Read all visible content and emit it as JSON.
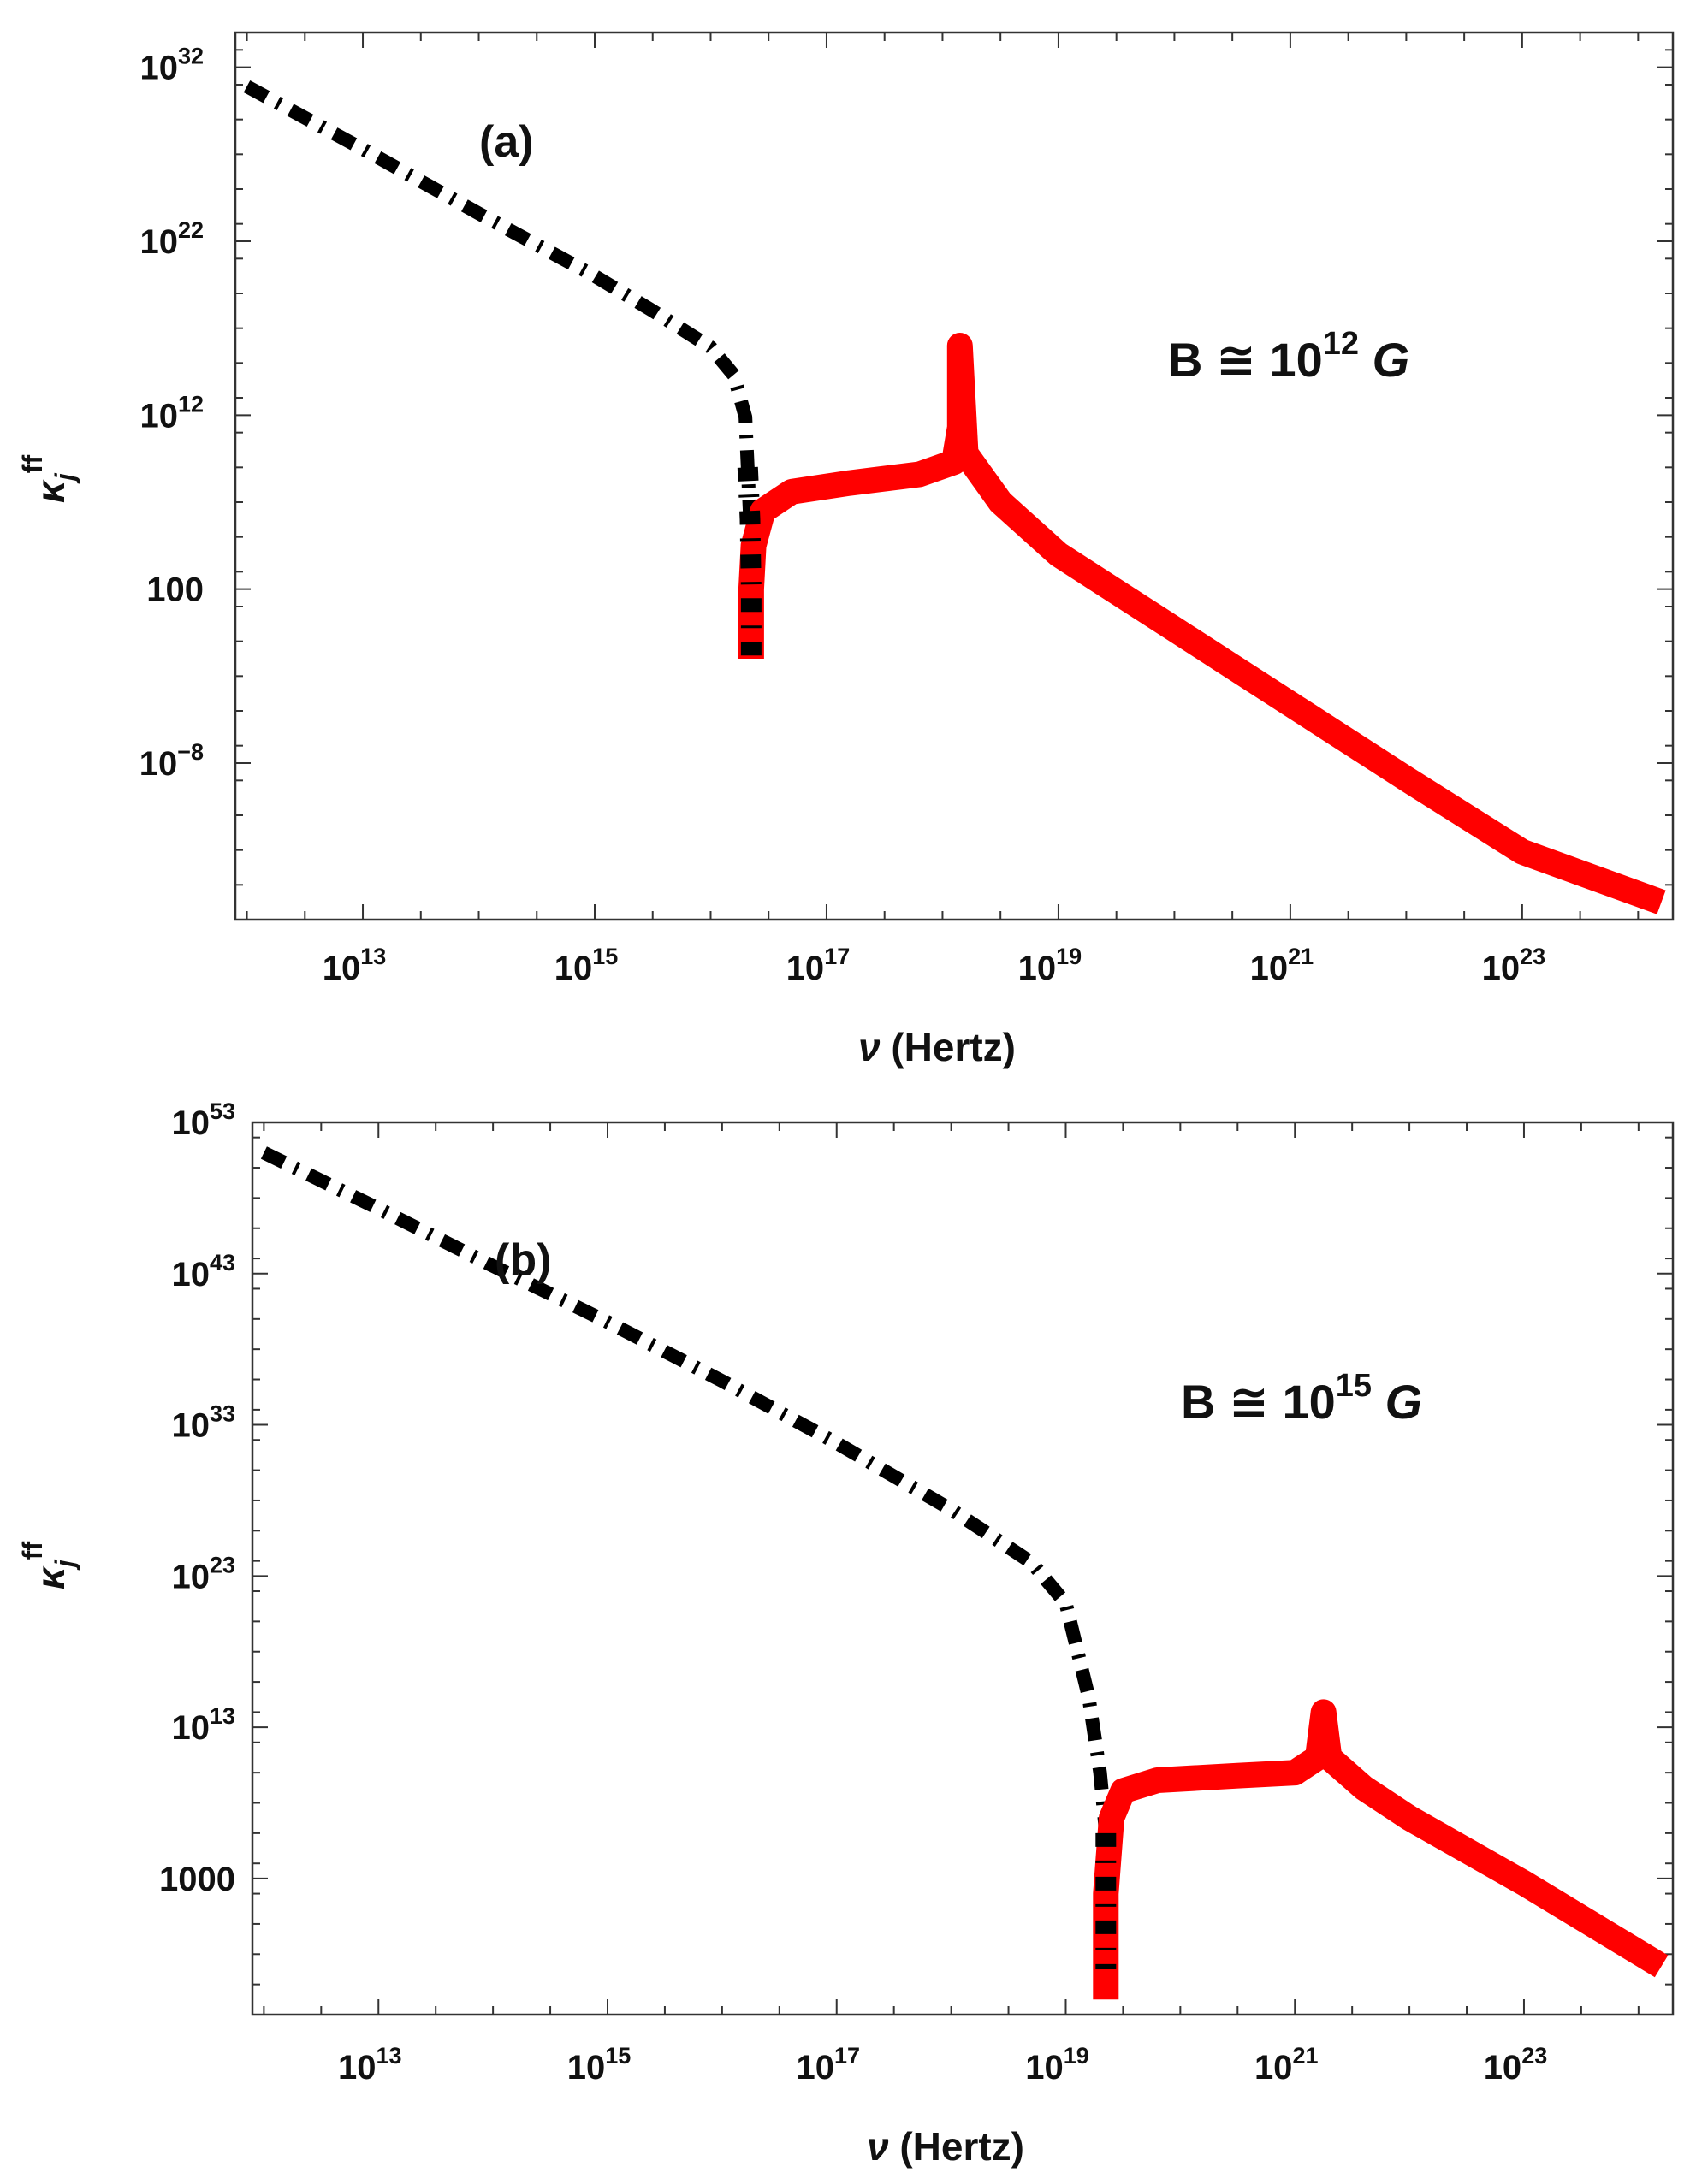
{
  "chart_data": [
    {
      "type": "line",
      "panel_label": "(a)",
      "annotation": {
        "base": "B ≅ 10",
        "exp": "12",
        "unit": "G"
      },
      "xlabel": {
        "symbol": "ν",
        "text": " (Hertz)"
      },
      "ylabel": {
        "base": "κ",
        "sub": "j",
        "sup": "ff"
      },
      "x_scale": "log10",
      "y_scale": "log10",
      "xlim_log10": [
        11.9,
        24.3
      ],
      "ylim_log10": [
        -17,
        34
      ],
      "x_ticks": [
        {
          "base": "10",
          "exp": "13",
          "log10": 13
        },
        {
          "base": "10",
          "exp": "15",
          "log10": 15
        },
        {
          "base": "10",
          "exp": "17",
          "log10": 17
        },
        {
          "base": "10",
          "exp": "19",
          "log10": 19
        },
        {
          "base": "10",
          "exp": "21",
          "log10": 21
        },
        {
          "base": "10",
          "exp": "23",
          "log10": 23
        }
      ],
      "y_ticks": [
        {
          "base": "10",
          "exp": "−8",
          "log10": -8
        },
        {
          "base": "100",
          "exp": "",
          "log10": 2
        },
        {
          "base": "10",
          "exp": "12",
          "log10": 12
        },
        {
          "base": "10",
          "exp": "22",
          "log10": 22
        },
        {
          "base": "10",
          "exp": "32",
          "log10": 32
        }
      ],
      "series": [
        {
          "style": "dash-dot",
          "color": "#000000",
          "points_log10": [
            [
              12.0,
              30.9
            ],
            [
              13.0,
              27.3
            ],
            [
              14.0,
              23.6
            ],
            [
              15.0,
              20.0
            ],
            [
              15.5,
              18.0
            ],
            [
              16.0,
              15.9
            ],
            [
              16.2,
              14.3
            ],
            [
              16.3,
              11.9
            ],
            [
              16.32,
              9.0
            ],
            [
              16.34,
              6.0
            ],
            [
              16.35,
              2.0
            ],
            [
              16.35,
              -2.0
            ]
          ]
        },
        {
          "style": "solid",
          "color": "#ff0000",
          "points_log10": [
            [
              16.35,
              -2.0
            ],
            [
              16.35,
              2.0
            ],
            [
              16.37,
              4.5
            ],
            [
              16.45,
              6.5
            ],
            [
              16.7,
              7.6
            ],
            [
              17.2,
              8.1
            ],
            [
              17.8,
              8.6
            ],
            [
              18.1,
              9.3
            ],
            [
              18.15,
              11.3
            ],
            [
              18.15,
              16.0
            ],
            [
              18.2,
              9.8
            ],
            [
              18.5,
              7.0
            ],
            [
              19.0,
              4.0
            ],
            [
              20.0,
              -0.3
            ],
            [
              21.0,
              -4.6
            ],
            [
              22.0,
              -8.9
            ],
            [
              23.0,
              -13.1
            ],
            [
              24.2,
              -16.0
            ]
          ]
        }
      ]
    },
    {
      "type": "line",
      "panel_label": "(b)",
      "annotation": {
        "base": "B ≅ 10",
        "exp": "15",
        "unit": "G"
      },
      "xlabel": {
        "symbol": "ν",
        "text": " (Hertz)"
      },
      "ylabel": {
        "base": "κ",
        "sub": "j",
        "sup": "ff"
      },
      "x_scale": "log10",
      "y_scale": "log10",
      "xlim_log10": [
        11.9,
        24.3
      ],
      "ylim_log10": [
        -6,
        53
      ],
      "x_ticks": [
        {
          "base": "10",
          "exp": "13",
          "log10": 13
        },
        {
          "base": "10",
          "exp": "15",
          "log10": 15
        },
        {
          "base": "10",
          "exp": "17",
          "log10": 17
        },
        {
          "base": "10",
          "exp": "19",
          "log10": 19
        },
        {
          "base": "10",
          "exp": "21",
          "log10": 21
        },
        {
          "base": "10",
          "exp": "23",
          "log10": 23
        }
      ],
      "y_ticks": [
        {
          "base": "1000",
          "exp": "",
          "log10": 3
        },
        {
          "base": "10",
          "exp": "13",
          "log10": 13
        },
        {
          "base": "10",
          "exp": "23",
          "log10": 23
        },
        {
          "base": "10",
          "exp": "33",
          "log10": 33
        },
        {
          "base": "10",
          "exp": "43",
          "log10": 43
        },
        {
          "base": "10",
          "exp": "53",
          "log10": 53
        }
      ],
      "series": [
        {
          "style": "dash-dot",
          "color": "#000000",
          "points_log10": [
            [
              12.0,
              51.0
            ],
            [
              13.0,
              47.3
            ],
            [
              14.0,
              43.5
            ],
            [
              15.0,
              39.8
            ],
            [
              16.0,
              35.9
            ],
            [
              17.0,
              31.8
            ],
            [
              18.0,
              27.4
            ],
            [
              18.7,
              23.9
            ],
            [
              19.0,
              21.2
            ],
            [
              19.2,
              15.0
            ],
            [
              19.3,
              10.0
            ],
            [
              19.35,
              6.0
            ],
            [
              19.35,
              -3.0
            ]
          ]
        },
        {
          "style": "solid",
          "color": "#ff0000",
          "points_log10": [
            [
              19.35,
              -5.0
            ],
            [
              19.35,
              2.0
            ],
            [
              19.4,
              7.0
            ],
            [
              19.5,
              8.8
            ],
            [
              19.8,
              9.5
            ],
            [
              20.5,
              9.8
            ],
            [
              21.0,
              10.0
            ],
            [
              21.2,
              11.0
            ],
            [
              21.25,
              14.0
            ],
            [
              21.3,
              11.0
            ],
            [
              21.6,
              9.0
            ],
            [
              22.0,
              7.0
            ],
            [
              23.0,
              2.7
            ],
            [
              24.2,
              -2.8
            ]
          ]
        }
      ]
    }
  ]
}
